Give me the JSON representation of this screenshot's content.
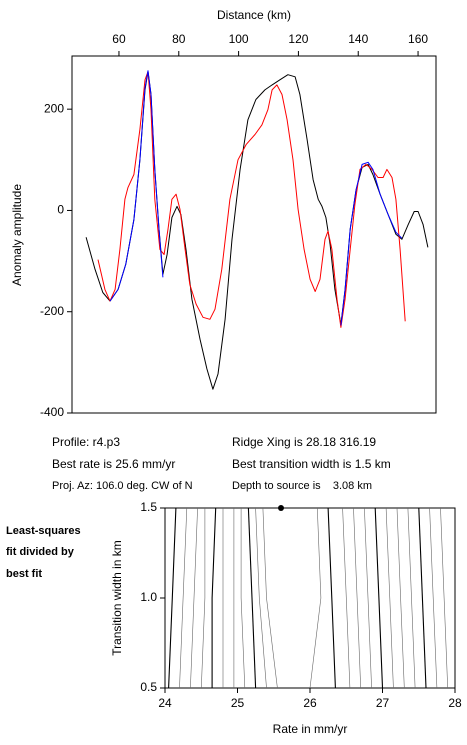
{
  "chart_data": [
    {
      "type": "line",
      "xlabel": "Distance (km)",
      "ylabel": "Anomaly amplitude",
      "xlim": [
        44.3,
        166
      ],
      "ylim": [
        -400,
        305
      ],
      "xticks": [
        60,
        80,
        100,
        120,
        140,
        160
      ],
      "yticks": [
        -400,
        -200,
        0,
        200
      ],
      "series": [
        {
          "color": "#000000",
          "x": [
            49.0,
            52.0,
            54.6,
            57.0,
            59.7,
            62.3,
            65.0,
            67.0,
            68.7,
            69.7,
            70.7,
            72.0,
            73.4,
            74.7,
            76.1,
            77.7,
            79.4,
            80.7,
            82.4,
            84.4,
            87.1,
            89.4,
            91.4,
            93.1,
            95.5,
            97.8,
            100.5,
            103.1,
            105.8,
            108.8,
            111.2,
            113.8,
            116.5,
            118.9,
            120.5,
            122.9,
            124.9,
            126.6,
            127.9,
            129.2,
            130.6,
            132.2,
            134.2,
            135.6,
            137.3,
            139.3,
            141.3,
            143.3,
            144.9,
            147.3,
            150.0,
            152.6,
            154.6,
            156.7,
            158.7,
            160.0,
            161.7,
            163.3
          ],
          "values": [
            -53,
            -116,
            -162,
            -179,
            -156,
            -106,
            -18,
            100,
            238,
            274,
            229,
            81,
            -37,
            -126,
            -87,
            -14,
            8,
            -8,
            -77,
            -175,
            -254,
            -313,
            -353,
            -323,
            -215,
            -57,
            81,
            179,
            219,
            238,
            248,
            258,
            268,
            264,
            229,
            140,
            61,
            22,
            8,
            -14,
            -67,
            -156,
            -225,
            -156,
            -37,
            41,
            85,
            91,
            71,
            32,
            -8,
            -47,
            -57,
            -28,
            -2,
            -2,
            -28,
            -73
          ]
        },
        {
          "color": "#ff0000",
          "x": [
            53.0,
            55.3,
            57.0,
            58.7,
            60.3,
            62.0,
            63.0,
            65.0,
            67.0,
            68.7,
            69.7,
            70.7,
            72.0,
            73.7,
            75.1,
            76.4,
            77.7,
            79.1,
            80.4,
            82.1,
            83.7,
            85.8,
            88.1,
            90.4,
            92.1,
            94.4,
            97.1,
            99.8,
            102.5,
            105.5,
            107.8,
            109.8,
            111.2,
            112.8,
            114.5,
            116.2,
            118.2,
            119.9,
            121.9,
            123.9,
            125.6,
            127.2,
            128.9,
            129.9,
            131.2,
            132.9,
            134.2,
            135.6,
            137.3,
            138.9,
            140.6,
            142.6,
            144.6,
            146.6,
            148.3,
            149.6,
            151.3,
            152.6,
            154.0,
            155.7
          ],
          "values": [
            -97,
            -156,
            -179,
            -156,
            -77,
            22,
            45,
            71,
            160,
            258,
            274,
            199,
            22,
            -77,
            -87,
            -37,
            22,
            32,
            2,
            -77,
            -146,
            -185,
            -211,
            -215,
            -195,
            -116,
            22,
            100,
            130,
            150,
            169,
            199,
            238,
            248,
            229,
            179,
            100,
            2,
            -77,
            -136,
            -160,
            -136,
            -57,
            -41,
            -77,
            -175,
            -231,
            -175,
            -77,
            12,
            81,
            91,
            81,
            65,
            65,
            81,
            65,
            22,
            -77,
            -219
          ]
        },
        {
          "color": "#0000ff",
          "x": [
            57.0,
            59.7,
            62.3,
            65.0,
            67.0,
            68.7,
            69.7,
            70.7,
            72.0,
            73.4,
            74.7,
            100,
            134.2,
            135.6,
            137.3,
            139.3,
            141.3,
            143.3,
            144.9,
            147.3,
            150.0,
            152.6,
            154.6
          ],
          "values": [
            -179,
            -156,
            -106,
            -18,
            100,
            242,
            276,
            229,
            81,
            -37,
            -132,
            null,
            -227,
            -156,
            -37,
            41,
            91,
            95,
            81,
            32,
            -8,
            -43,
            -55
          ]
        }
      ]
    },
    {
      "type": "contour",
      "xlabel": "Rate in mm/yr",
      "ylabel": "Transition width in km",
      "title_lines": [
        "Least-squares",
        "fit divided by",
        "best fit"
      ],
      "xlim": [
        24,
        28
      ],
      "ylim": [
        0.5,
        1.5
      ],
      "xticks": [
        24,
        25,
        26,
        27,
        28
      ],
      "yticks": [
        0.5,
        {
          "value": 1,
          "label": "1.0"
        },
        1.5
      ],
      "contour_widths": [
        0.5,
        1.0,
        1.5
      ],
      "contours": [
        [
          24.05,
          24.1,
          24.15
        ],
        [
          24.2,
          24.25,
          24.3
        ],
        [
          24.35,
          24.4,
          24.45
        ],
        [
          24.5,
          24.55,
          24.55
        ],
        [
          24.65,
          24.65,
          24.7
        ],
        [
          24.8,
          24.8,
          24.8
        ],
        [
          24.95,
          24.95,
          24.95
        ],
        [
          25.1,
          25.05,
          25.05
        ],
        [
          25.25,
          25.2,
          25.15
        ],
        [
          25.4,
          25.3,
          25.25
        ],
        [
          25.55,
          25.4,
          25.35
        ],
        [
          26.0,
          26.15,
          26.1
        ],
        [
          26.35,
          26.3,
          26.25
        ],
        [
          26.55,
          26.5,
          26.45
        ],
        [
          26.7,
          26.65,
          26.6
        ],
        [
          26.85,
          26.8,
          26.75
        ],
        [
          27.0,
          26.95,
          26.9
        ],
        [
          27.15,
          27.1,
          27.05
        ],
        [
          27.3,
          27.25,
          27.2
        ],
        [
          27.45,
          27.4,
          27.35
        ],
        [
          27.6,
          27.55,
          27.5
        ],
        [
          27.75,
          27.7,
          27.65
        ],
        [
          27.9,
          27.85,
          27.8
        ]
      ],
      "best": {
        "x": 25.6,
        "y": 1.5
      }
    }
  ],
  "info": {
    "profile": "Profile: r4.p3",
    "best_rate": "Best rate is 25.6 mm/yr",
    "projection": "Proj. Az: 106.0 deg. CW of N",
    "ridge": "Ridge Xing is 28.18 316.19",
    "transition": "Best transition width is 1.5 km",
    "depth": "Depth to source is    3.08 km"
  }
}
